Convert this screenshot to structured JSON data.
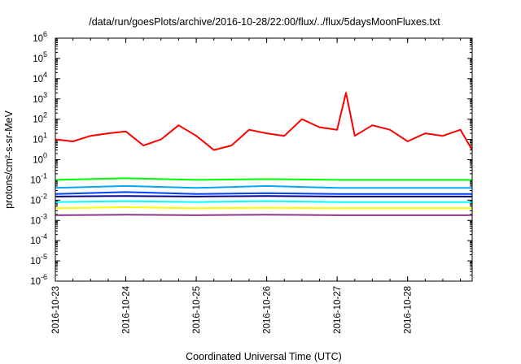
{
  "chart_data": {
    "type": "line",
    "title": "/data/run/goesPlots/archive/2016-10-28/22:00/flux/../flux/5daysMoonFluxes.txt",
    "xlabel": "Coordinated Universal Time (UTC)",
    "ylabel": "protons/cm²-s-sr-MeV",
    "yscale": "log",
    "ylim": [
      1e-06,
      1000000.0
    ],
    "xlim": [
      "2016-10-23T00:00",
      "2016-10-28T22:00"
    ],
    "y_ticks": [
      {
        "base": "10",
        "exp": "-6",
        "value": 1e-06
      },
      {
        "base": "10",
        "exp": "-5",
        "value": 1e-05
      },
      {
        "base": "10",
        "exp": "-4",
        "value": 0.0001
      },
      {
        "base": "10",
        "exp": "-3",
        "value": 0.001
      },
      {
        "base": "10",
        "exp": "-2",
        "value": 0.01
      },
      {
        "base": "10",
        "exp": "-1",
        "value": 0.1
      },
      {
        "base": "10",
        "exp": "0",
        "value": 1
      },
      {
        "base": "10",
        "exp": "1",
        "value": 10
      },
      {
        "base": "10",
        "exp": "2",
        "value": 100
      },
      {
        "base": "10",
        "exp": "3",
        "value": 1000
      },
      {
        "base": "10",
        "exp": "4",
        "value": 10000
      },
      {
        "base": "10",
        "exp": "5",
        "value": 100000
      },
      {
        "base": "10",
        "exp": "6",
        "value": 1000000
      }
    ],
    "x_ticks": [
      "2016-10-23",
      "2016-10-24",
      "2016-10-25",
      "2016-10-26",
      "2016-10-27",
      "2016-10-28"
    ],
    "grid": false,
    "legend": "none",
    "series": [
      {
        "color": "#ff0000",
        "x": [
          "2016-10-23T00:00",
          "2016-10-23T06:00",
          "2016-10-23T12:00",
          "2016-10-23T18:00",
          "2016-10-24T00:00",
          "2016-10-24T06:00",
          "2016-10-24T12:00",
          "2016-10-24T18:00",
          "2016-10-25T00:00",
          "2016-10-25T06:00",
          "2016-10-25T12:00",
          "2016-10-25T18:00",
          "2016-10-26T00:00",
          "2016-10-26T06:00",
          "2016-10-26T12:00",
          "2016-10-26T18:00",
          "2016-10-27T00:00",
          "2016-10-27T03:00",
          "2016-10-27T06:00",
          "2016-10-27T12:00",
          "2016-10-27T18:00",
          "2016-10-28T00:00",
          "2016-10-28T06:00",
          "2016-10-28T12:00",
          "2016-10-28T18:00",
          "2016-10-28T22:00"
        ],
        "y": [
          10,
          8,
          15,
          20,
          25,
          5,
          10,
          50,
          15,
          3,
          5,
          30,
          20,
          15,
          100,
          40,
          30,
          2000,
          15,
          50,
          30,
          8,
          20,
          15,
          30,
          3
        ]
      },
      {
        "color": "#00ff00",
        "x": [
          "2016-10-23T00:00",
          "2016-10-24T00:00",
          "2016-10-25T00:00",
          "2016-10-26T00:00",
          "2016-10-27T00:00",
          "2016-10-28T00:00",
          "2016-10-28T22:00"
        ],
        "y": [
          0.1,
          0.12,
          0.1,
          0.11,
          0.1,
          0.1,
          0.1
        ]
      },
      {
        "color": "#00aaff",
        "x": [
          "2016-10-23T00:00",
          "2016-10-24T00:00",
          "2016-10-25T00:00",
          "2016-10-26T00:00",
          "2016-10-27T00:00",
          "2016-10-28T00:00",
          "2016-10-28T22:00"
        ],
        "y": [
          0.04,
          0.05,
          0.04,
          0.05,
          0.04,
          0.04,
          0.04
        ]
      },
      {
        "color": "#0044ff",
        "x": [
          "2016-10-23T00:00",
          "2016-10-24T00:00",
          "2016-10-25T00:00",
          "2016-10-26T00:00",
          "2016-10-27T00:00",
          "2016-10-28T00:00",
          "2016-10-28T22:00"
        ],
        "y": [
          0.02,
          0.025,
          0.02,
          0.022,
          0.02,
          0.02,
          0.02
        ]
      },
      {
        "color": "#00008b",
        "x": [
          "2016-10-23T00:00",
          "2016-10-24T00:00",
          "2016-10-25T00:00",
          "2016-10-26T00:00",
          "2016-10-27T00:00",
          "2016-10-28T00:00",
          "2016-10-28T22:00"
        ],
        "y": [
          0.015,
          0.016,
          0.015,
          0.016,
          0.015,
          0.015,
          0.015
        ]
      },
      {
        "color": "#00ffff",
        "x": [
          "2016-10-23T00:00",
          "2016-10-24T00:00",
          "2016-10-25T00:00",
          "2016-10-26T00:00",
          "2016-10-27T00:00",
          "2016-10-28T00:00",
          "2016-10-28T22:00"
        ],
        "y": [
          0.008,
          0.009,
          0.008,
          0.009,
          0.008,
          0.008,
          0.008
        ]
      },
      {
        "color": "#ffff00",
        "x": [
          "2016-10-23T00:00",
          "2016-10-24T00:00",
          "2016-10-25T00:00",
          "2016-10-26T00:00",
          "2016-10-27T00:00",
          "2016-10-28T00:00",
          "2016-10-28T22:00"
        ],
        "y": [
          0.004,
          0.0045,
          0.004,
          0.0042,
          0.004,
          0.004,
          0.004
        ]
      },
      {
        "color": "#8b3a8b",
        "x": [
          "2016-10-23T00:00",
          "2016-10-24T00:00",
          "2016-10-25T00:00",
          "2016-10-26T00:00",
          "2016-10-27T00:00",
          "2016-10-28T00:00",
          "2016-10-28T22:00"
        ],
        "y": [
          0.0018,
          0.0019,
          0.0018,
          0.0019,
          0.0018,
          0.0018,
          0.0018
        ]
      }
    ]
  }
}
